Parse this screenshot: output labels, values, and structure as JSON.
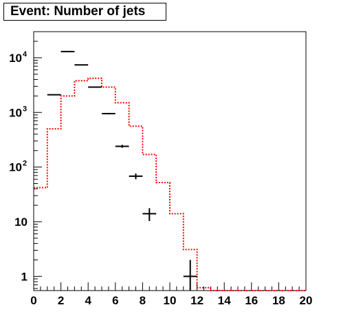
{
  "title": "Event: Number of jets",
  "chart_data": {
    "type": "histogram",
    "title": "Event: Number of jets",
    "xlabel": "",
    "ylabel": "",
    "xlim": [
      0,
      20
    ],
    "ylim": [
      0.55,
      30000
    ],
    "yscale": "log",
    "bin_width": 1,
    "x_ticks": [
      0,
      2,
      4,
      6,
      8,
      10,
      12,
      14,
      16,
      18,
      20
    ],
    "y_ticks": [
      {
        "value": 1,
        "label": "1"
      },
      {
        "value": 10,
        "label": "10"
      },
      {
        "value": 100,
        "label": "10",
        "exp": "2"
      },
      {
        "value": 1000,
        "label": "10",
        "exp": "3"
      },
      {
        "value": 10000,
        "label": "10",
        "exp": "4"
      }
    ],
    "series": [
      {
        "kind": "step",
        "color": "#ff0000",
        "dashed": true,
        "bins": [
          0,
          1,
          2,
          3,
          4,
          5,
          6,
          7,
          8,
          9,
          10,
          11,
          12,
          13,
          14,
          15,
          16,
          17,
          18,
          19
        ],
        "values": [
          42,
          500,
          2000,
          3800,
          4200,
          2900,
          1500,
          560,
          170,
          52,
          14,
          3.1,
          0.62,
          0.55,
          0.55,
          0.55,
          0.55,
          0.55,
          0.55,
          0.55
        ]
      },
      {
        "kind": "points",
        "color": "#000000",
        "x": [
          1.5,
          2.5,
          3.5,
          4.5,
          5.5,
          6.5,
          7.5,
          8.5,
          11.5
        ],
        "y": [
          2100,
          13000,
          7400,
          2900,
          950,
          240,
          68,
          14,
          1
        ],
        "xerr": [
          0.5,
          0.5,
          0.5,
          0.5,
          0.5,
          0.5,
          0.5,
          0.5,
          0.5
        ],
        "yerr_low": [
          46,
          114,
          86,
          54,
          31,
          15,
          8.2,
          3.7,
          1
        ],
        "yerr_high": [
          46,
          114,
          86,
          54,
          31,
          15,
          8.2,
          3.7,
          1
        ]
      }
    ]
  }
}
